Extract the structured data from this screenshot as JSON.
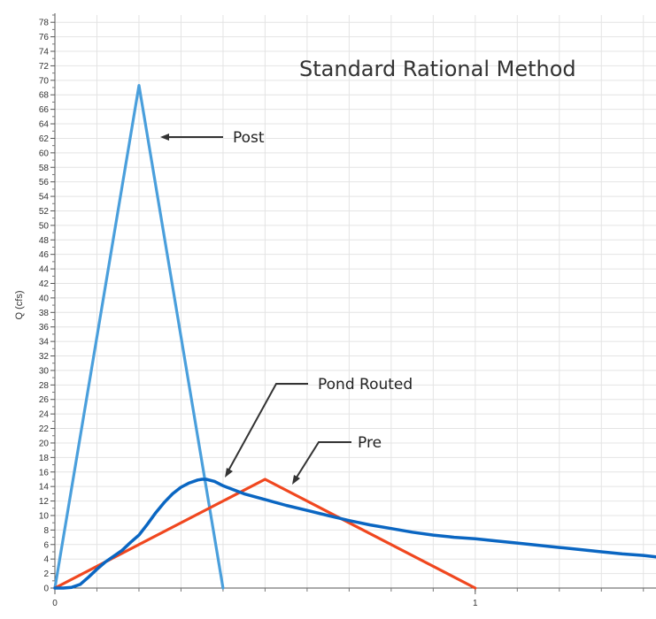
{
  "chart_data": {
    "type": "line",
    "title": "Standard Rational Method",
    "xlabel": "",
    "ylabel": "Q (cfs)",
    "xlim": [
      0,
      1.43
    ],
    "ylim": [
      0,
      79
    ],
    "x_ticks": [
      0,
      1
    ],
    "y_ticks": [
      0,
      2,
      4,
      6,
      8,
      10,
      12,
      14,
      16,
      18,
      20,
      22,
      24,
      26,
      28,
      30,
      32,
      34,
      36,
      38,
      40,
      42,
      44,
      46,
      48,
      50,
      52,
      54,
      56,
      58,
      60,
      62,
      64,
      66,
      68,
      70,
      72,
      74,
      76,
      78
    ],
    "grid": true,
    "legend": "none",
    "series": [
      {
        "name": "Post",
        "color": "#4a9fdc",
        "x": [
          0,
          0.2,
          0.4
        ],
        "y": [
          0,
          69.3,
          0
        ]
      },
      {
        "name": "Pre",
        "color": "#f0471f",
        "x": [
          0,
          0.5,
          1.0
        ],
        "y": [
          0,
          15,
          0
        ]
      },
      {
        "name": "Pond Routed",
        "color": "#0a66c2",
        "x": [
          0,
          0.02,
          0.04,
          0.06,
          0.08,
          0.1,
          0.12,
          0.14,
          0.16,
          0.18,
          0.2,
          0.22,
          0.24,
          0.26,
          0.28,
          0.3,
          0.32,
          0.34,
          0.35,
          0.36,
          0.38,
          0.4,
          0.45,
          0.5,
          0.55,
          0.6,
          0.65,
          0.7,
          0.75,
          0.8,
          0.85,
          0.9,
          0.95,
          1.0,
          1.05,
          1.1,
          1.15,
          1.2,
          1.25,
          1.3,
          1.35,
          1.4,
          1.43
        ],
        "y": [
          0,
          0,
          0.1,
          0.5,
          1.5,
          2.6,
          3.6,
          4.4,
          5.2,
          6.3,
          7.3,
          8.8,
          10.4,
          11.8,
          13.0,
          13.9,
          14.5,
          14.9,
          15.0,
          15.0,
          14.7,
          14.1,
          13.0,
          12.2,
          11.4,
          10.7,
          10.0,
          9.3,
          8.7,
          8.2,
          7.7,
          7.3,
          7.0,
          6.8,
          6.5,
          6.2,
          5.9,
          5.6,
          5.3,
          5.0,
          4.7,
          4.5,
          4.3
        ]
      }
    ],
    "annotations": [
      {
        "text": "Post",
        "points_to": "Post"
      },
      {
        "text": "Pond Routed",
        "points_to": "Pond Routed"
      },
      {
        "text": "Pre",
        "points_to": "Pre"
      }
    ]
  },
  "labels": {
    "title": "Standard Rational Method",
    "ylabel": "Q (cfs)",
    "annot_post": "Post",
    "annot_pond": "Pond Routed",
    "annot_pre": "Pre"
  }
}
